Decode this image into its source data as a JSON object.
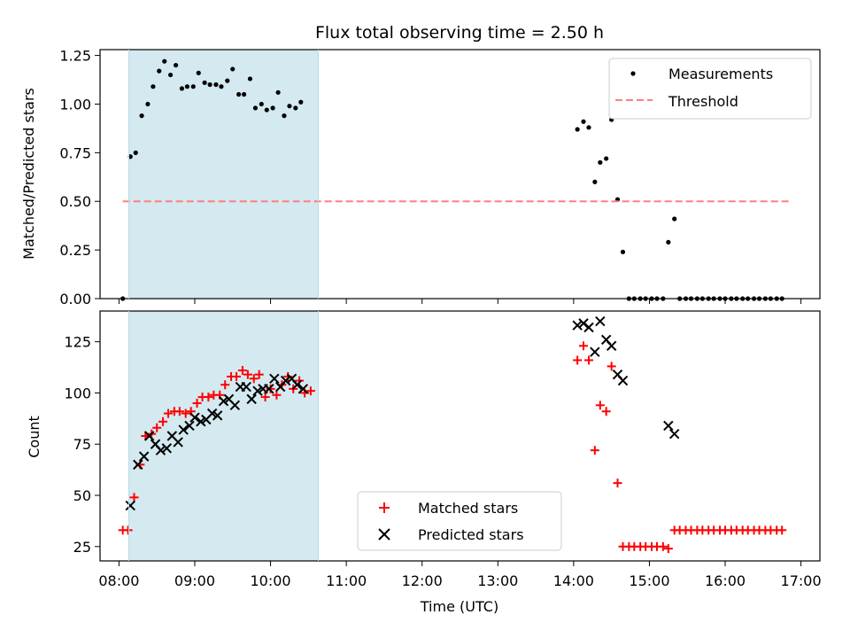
{
  "chart_data": [
    {
      "type": "scatter",
      "title": "Flux total observing time = 2.50 h",
      "xlabel": "",
      "ylabel": "Matched/Predicted stars",
      "xlim": [
        7.75,
        17.25
      ],
      "ylim": [
        0.0,
        1.28
      ],
      "yticks": [
        0.0,
        0.25,
        0.5,
        0.75,
        1.0,
        1.25
      ],
      "yticklabels": [
        "0.00",
        "0.25",
        "0.50",
        "0.75",
        "1.00",
        "1.25"
      ],
      "xticks": [
        8,
        9,
        10,
        11,
        12,
        13,
        14,
        15,
        16,
        17
      ],
      "shaded_span": [
        8.13,
        10.63
      ],
      "shade_color": "#d4e9f0",
      "grid": false,
      "legend": "top-right",
      "series": [
        {
          "name": "Measurements",
          "marker": "dot",
          "color": "#000000",
          "points": [
            [
              8.05,
              0.0
            ],
            [
              8.15,
              0.73
            ],
            [
              8.22,
              0.75
            ],
            [
              8.3,
              0.94
            ],
            [
              8.38,
              1.0
            ],
            [
              8.45,
              1.09
            ],
            [
              8.53,
              1.17
            ],
            [
              8.6,
              1.22
            ],
            [
              8.68,
              1.15
            ],
            [
              8.75,
              1.2
            ],
            [
              8.83,
              1.08
            ],
            [
              8.9,
              1.09
            ],
            [
              8.98,
              1.09
            ],
            [
              9.05,
              1.16
            ],
            [
              9.13,
              1.11
            ],
            [
              9.2,
              1.1
            ],
            [
              9.28,
              1.1
            ],
            [
              9.35,
              1.09
            ],
            [
              9.43,
              1.12
            ],
            [
              9.5,
              1.18
            ],
            [
              9.58,
              1.05
            ],
            [
              9.65,
              1.05
            ],
            [
              9.73,
              1.13
            ],
            [
              9.8,
              0.98
            ],
            [
              9.88,
              1.0
            ],
            [
              9.95,
              0.97
            ],
            [
              10.03,
              0.98
            ],
            [
              10.1,
              1.06
            ],
            [
              10.18,
              0.94
            ],
            [
              10.25,
              0.99
            ],
            [
              10.33,
              0.98
            ],
            [
              10.4,
              1.01
            ],
            [
              14.05,
              0.87
            ],
            [
              14.13,
              0.91
            ],
            [
              14.2,
              0.88
            ],
            [
              14.28,
              0.6
            ],
            [
              14.35,
              0.7
            ],
            [
              14.43,
              0.72
            ],
            [
              14.5,
              0.92
            ],
            [
              14.58,
              0.51
            ],
            [
              14.65,
              0.24
            ],
            [
              14.73,
              0.0
            ],
            [
              14.8,
              0.0
            ],
            [
              14.88,
              0.0
            ],
            [
              14.95,
              0.0
            ],
            [
              15.03,
              0.0
            ],
            [
              15.1,
              0.0
            ],
            [
              15.18,
              0.0
            ],
            [
              15.25,
              0.29
            ],
            [
              15.33,
              0.41
            ],
            [
              15.4,
              0.0
            ],
            [
              15.48,
              0.0
            ],
            [
              15.55,
              0.0
            ],
            [
              15.63,
              0.0
            ],
            [
              15.7,
              0.0
            ],
            [
              15.78,
              0.0
            ],
            [
              15.85,
              0.0
            ],
            [
              15.93,
              0.0
            ],
            [
              16.0,
              0.0
            ],
            [
              16.08,
              0.0
            ],
            [
              16.15,
              0.0
            ],
            [
              16.23,
              0.0
            ],
            [
              16.3,
              0.0
            ],
            [
              16.38,
              0.0
            ],
            [
              16.45,
              0.0
            ],
            [
              16.53,
              0.0
            ],
            [
              16.6,
              0.0
            ],
            [
              16.68,
              0.0
            ],
            [
              16.75,
              0.0
            ]
          ]
        },
        {
          "name": "Threshold",
          "marker": "dashed-line",
          "color": "#ff7f7f",
          "points": [
            [
              8.05,
              0.5
            ],
            [
              16.85,
              0.5
            ]
          ]
        }
      ]
    },
    {
      "type": "scatter",
      "title": "",
      "xlabel": "Time (UTC)",
      "ylabel": "Count",
      "xlim": [
        7.75,
        17.25
      ],
      "ylim": [
        18,
        140
      ],
      "yticks": [
        25,
        50,
        75,
        100,
        125
      ],
      "yticklabels": [
        "25",
        "50",
        "75",
        "100",
        "125"
      ],
      "xticks": [
        8,
        9,
        10,
        11,
        12,
        13,
        14,
        15,
        16,
        17
      ],
      "xticklabels": [
        "08:00",
        "09:00",
        "10:00",
        "11:00",
        "12:00",
        "13:00",
        "14:00",
        "15:00",
        "16:00",
        "17:00"
      ],
      "shaded_span": [
        8.13,
        10.63
      ],
      "shade_color": "#d4e9f0",
      "grid": false,
      "legend": "bottom-center",
      "series": [
        {
          "name": "Matched stars",
          "marker": "plus",
          "color": "#ff0000",
          "points": [
            [
              8.05,
              33
            ],
            [
              8.12,
              33
            ],
            [
              8.2,
              49
            ],
            [
              8.28,
              65
            ],
            [
              8.35,
              79
            ],
            [
              8.43,
              80
            ],
            [
              8.5,
              83
            ],
            [
              8.58,
              86
            ],
            [
              8.65,
              90
            ],
            [
              8.73,
              91
            ],
            [
              8.8,
              91
            ],
            [
              8.88,
              90
            ],
            [
              8.95,
              91
            ],
            [
              9.03,
              95
            ],
            [
              9.1,
              98
            ],
            [
              9.18,
              98
            ],
            [
              9.25,
              99
            ],
            [
              9.33,
              99
            ],
            [
              9.4,
              104
            ],
            [
              9.48,
              108
            ],
            [
              9.55,
              108
            ],
            [
              9.63,
              111
            ],
            [
              9.7,
              109
            ],
            [
              9.78,
              107
            ],
            [
              9.85,
              109
            ],
            [
              9.93,
              98
            ],
            [
              10.0,
              102
            ],
            [
              10.08,
              99
            ],
            [
              10.15,
              104
            ],
            [
              10.23,
              108
            ],
            [
              10.3,
              102
            ],
            [
              10.38,
              106
            ],
            [
              10.45,
              100
            ],
            [
              10.53,
              101
            ],
            [
              14.05,
              116
            ],
            [
              14.13,
              123
            ],
            [
              14.2,
              116
            ],
            [
              14.28,
              72
            ],
            [
              14.35,
              94
            ],
            [
              14.43,
              91
            ],
            [
              14.5,
              113
            ],
            [
              14.58,
              56
            ],
            [
              14.65,
              25
            ],
            [
              14.73,
              25
            ],
            [
              14.8,
              25
            ],
            [
              14.88,
              25
            ],
            [
              14.95,
              25
            ],
            [
              15.03,
              25
            ],
            [
              15.1,
              25
            ],
            [
              15.18,
              25
            ],
            [
              15.25,
              24
            ],
            [
              15.33,
              33
            ],
            [
              15.4,
              33
            ],
            [
              15.48,
              33
            ],
            [
              15.55,
              33
            ],
            [
              15.63,
              33
            ],
            [
              15.7,
              33
            ],
            [
              15.78,
              33
            ],
            [
              15.85,
              33
            ],
            [
              15.93,
              33
            ],
            [
              16.0,
              33
            ],
            [
              16.08,
              33
            ],
            [
              16.15,
              33
            ],
            [
              16.23,
              33
            ],
            [
              16.3,
              33
            ],
            [
              16.38,
              33
            ],
            [
              16.45,
              33
            ],
            [
              16.53,
              33
            ],
            [
              16.6,
              33
            ],
            [
              16.68,
              33
            ],
            [
              16.75,
              33
            ]
          ]
        },
        {
          "name": "Predicted stars",
          "marker": "x",
          "color": "#000000",
          "points": [
            [
              8.15,
              45
            ],
            [
              8.25,
              65
            ],
            [
              8.33,
              69
            ],
            [
              8.4,
              79
            ],
            [
              8.48,
              75
            ],
            [
              8.55,
              72
            ],
            [
              8.63,
              73
            ],
            [
              8.7,
              79
            ],
            [
              8.78,
              76
            ],
            [
              8.85,
              82
            ],
            [
              8.93,
              84
            ],
            [
              9.0,
              88
            ],
            [
              9.08,
              86
            ],
            [
              9.15,
              87
            ],
            [
              9.23,
              90
            ],
            [
              9.3,
              89
            ],
            [
              9.38,
              96
            ],
            [
              9.45,
              97
            ],
            [
              9.53,
              94
            ],
            [
              9.6,
              103
            ],
            [
              9.68,
              103
            ],
            [
              9.75,
              97
            ],
            [
              9.83,
              101
            ],
            [
              9.9,
              102
            ],
            [
              9.98,
              102
            ],
            [
              10.05,
              107
            ],
            [
              10.13,
              103
            ],
            [
              10.2,
              106
            ],
            [
              10.28,
              107
            ],
            [
              10.35,
              104
            ],
            [
              10.43,
              102
            ],
            [
              14.05,
              133
            ],
            [
              14.13,
              134
            ],
            [
              14.2,
              132
            ],
            [
              14.28,
              120
            ],
            [
              14.35,
              135
            ],
            [
              14.43,
              126
            ],
            [
              14.5,
              123
            ],
            [
              14.58,
              109
            ],
            [
              14.65,
              106
            ],
            [
              15.25,
              84
            ],
            [
              15.33,
              80
            ]
          ]
        }
      ]
    }
  ]
}
